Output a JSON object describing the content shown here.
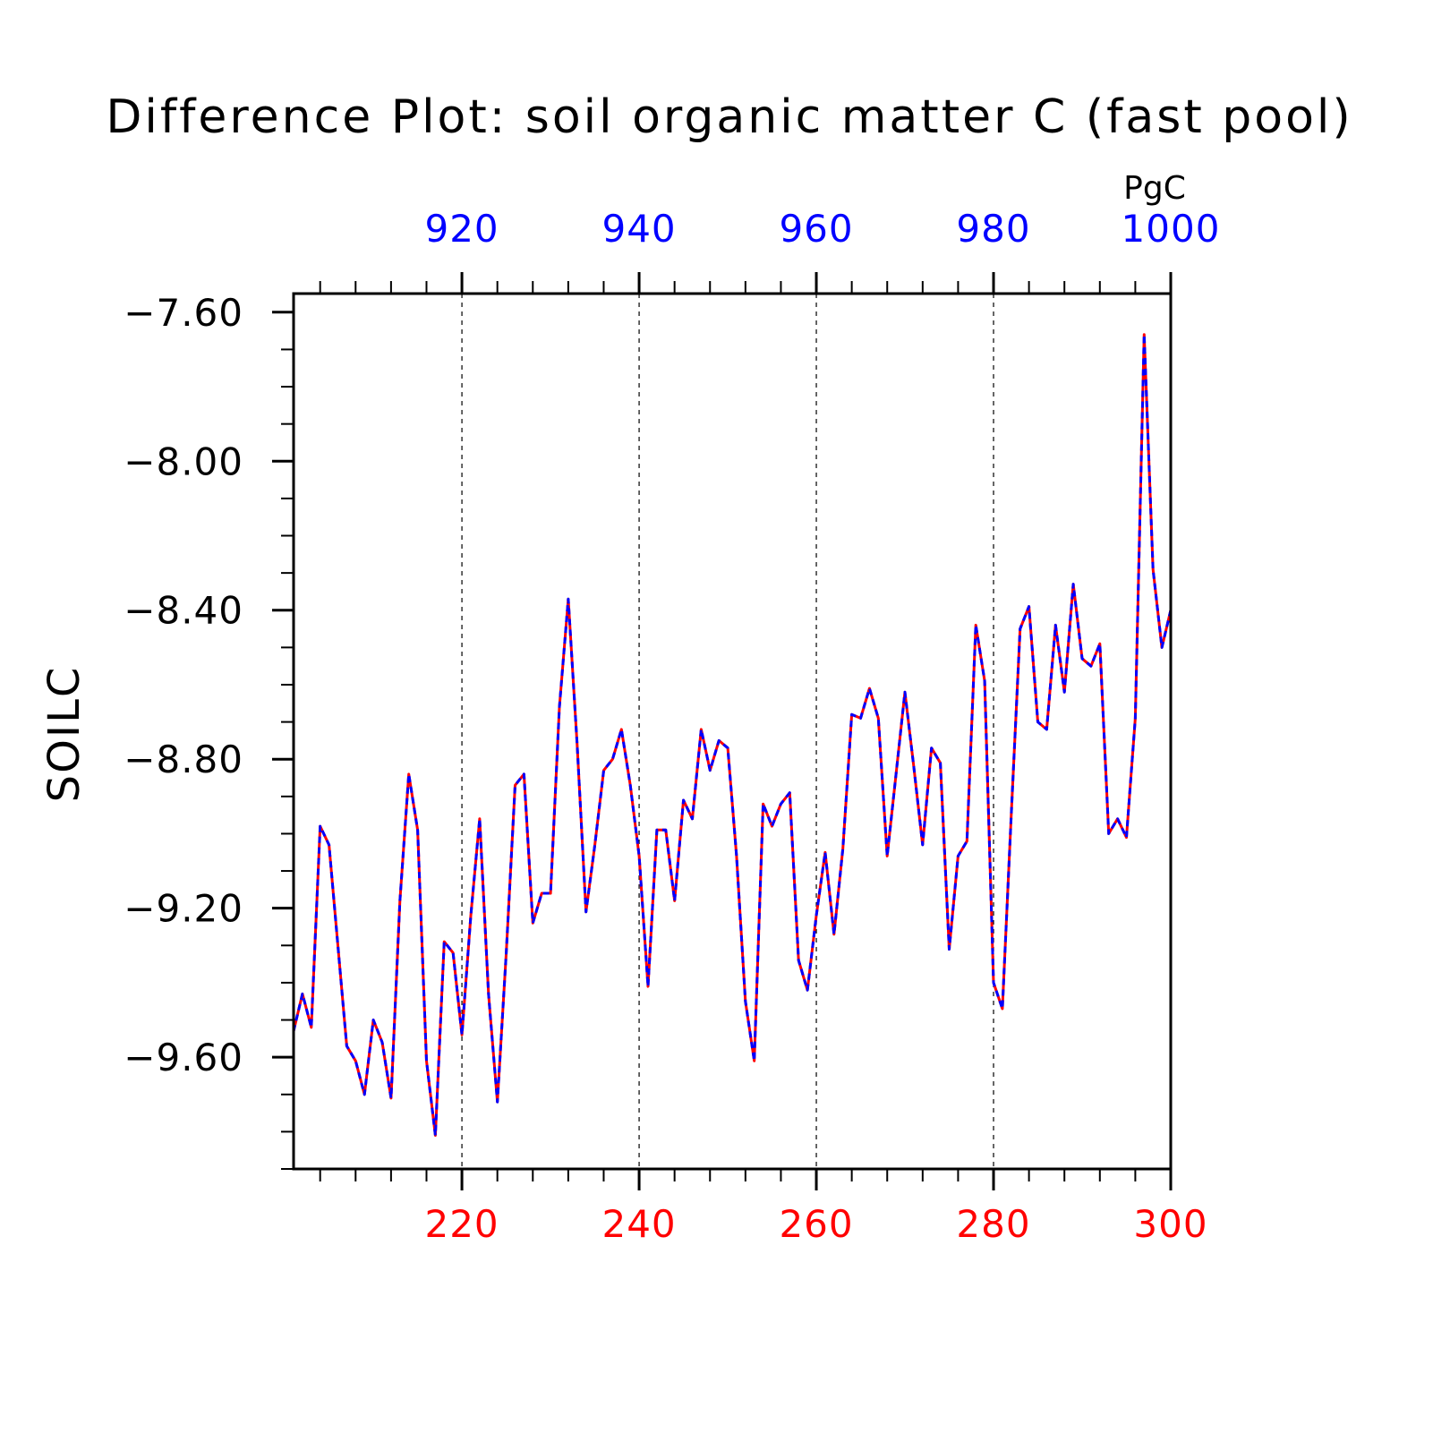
{
  "chart_data": {
    "type": "line",
    "title": "Difference Plot: soil organic matter C (fast pool)",
    "units": "PgC",
    "ylabel": "SOILC",
    "ylim": [
      -9.9,
      -7.55
    ],
    "yticks": [
      "-7.60",
      "-8.00",
      "-8.40",
      "-8.80",
      "-9.20",
      "-9.60"
    ],
    "x_bottom": {
      "range": [
        201,
        300
      ],
      "ticks": [
        220,
        240,
        260,
        280,
        300
      ],
      "color": "#ff0000"
    },
    "x_top": {
      "range": [
        901,
        1000
      ],
      "ticks": [
        920,
        940,
        960,
        980,
        1000
      ],
      "color": "#0000ff"
    },
    "grid_lines_at": [
      220,
      240,
      260,
      280
    ],
    "series": [
      {
        "name": "",
        "x": [
          201,
          202,
          203,
          204,
          205,
          206,
          207,
          208,
          209,
          210,
          211,
          212,
          213,
          214,
          215,
          216,
          217,
          218,
          219,
          220,
          221,
          222,
          223,
          224,
          225,
          226,
          227,
          228,
          229,
          230,
          231,
          232,
          233,
          234,
          235,
          236,
          237,
          238,
          239,
          240,
          241,
          242,
          243,
          244,
          245,
          246,
          247,
          248,
          249,
          250,
          251,
          252,
          253,
          254,
          255,
          256,
          257,
          258,
          259,
          260,
          261,
          262,
          263,
          264,
          265,
          266,
          267,
          268,
          269,
          270,
          271,
          272,
          273,
          274,
          275,
          276,
          277,
          278,
          279,
          280,
          281,
          282,
          283,
          284,
          285,
          286,
          287,
          288,
          289,
          290,
          291,
          292,
          293,
          294,
          295,
          296,
          297,
          298,
          299,
          300
        ],
        "values": [
          -9.53,
          -9.43,
          -9.52,
          -8.98,
          -9.03,
          -9.3,
          -9.57,
          -9.61,
          -9.7,
          -9.5,
          -9.56,
          -9.71,
          -9.18,
          -8.84,
          -8.99,
          -9.61,
          -9.81,
          -9.29,
          -9.32,
          -9.54,
          -9.22,
          -8.96,
          -9.43,
          -9.72,
          -9.32,
          -8.87,
          -8.84,
          -9.24,
          -9.16,
          -9.16,
          -8.66,
          -8.37,
          -8.76,
          -9.21,
          -9.03,
          -8.83,
          -8.8,
          -8.72,
          -8.87,
          -9.06,
          -9.41,
          -8.99,
          -8.99,
          -9.18,
          -8.91,
          -8.96,
          -8.72,
          -8.83,
          -8.75,
          -8.77,
          -9.06,
          -9.45,
          -9.61,
          -8.92,
          -8.98,
          -8.92,
          -8.89,
          -9.34,
          -9.42,
          -9.22,
          -9.05,
          -9.27,
          -9.04,
          -8.68,
          -8.69,
          -8.61,
          -8.69,
          -9.06,
          -8.84,
          -8.62,
          -8.82,
          -9.03,
          -8.77,
          -8.81,
          -9.31,
          -9.06,
          -9.02,
          -8.44,
          -8.59,
          -9.4,
          -9.47,
          -8.95,
          -8.45,
          -8.39,
          -8.7,
          -8.72,
          -8.44,
          -8.62,
          -8.33,
          -8.53,
          -8.55,
          -8.49,
          -9.0,
          -8.96,
          -9.01,
          -8.69,
          -7.66,
          -8.29,
          -8.5,
          -8.4
        ],
        "colors": [
          "#ff0000",
          "#0000ff"
        ]
      }
    ]
  }
}
